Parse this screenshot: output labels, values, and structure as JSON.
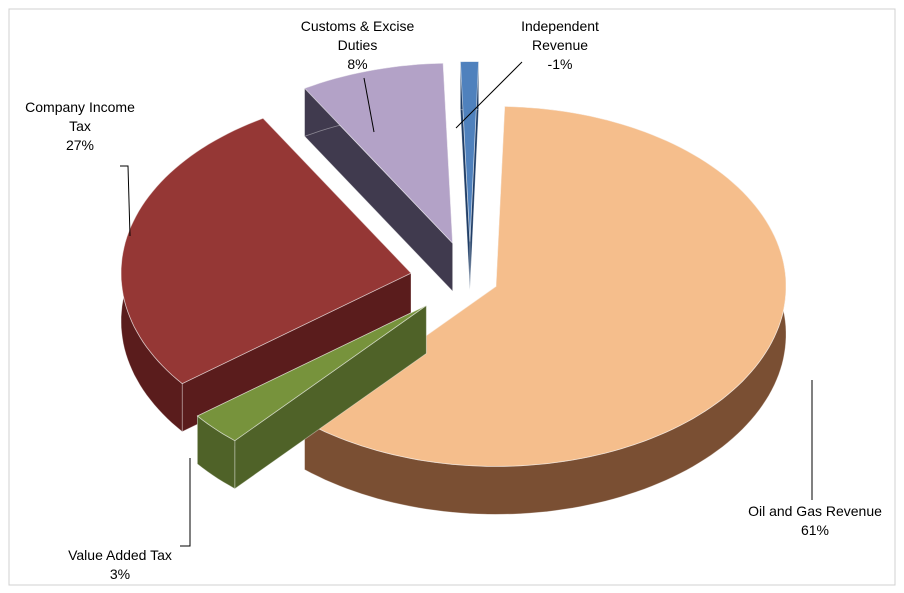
{
  "chart_data": {
    "type": "pie",
    "categories": [
      "Oil and Gas Revenue",
      "Value Added Tax",
      "Company Income Tax",
      "Customs & Excise Duties",
      "Independent Revenue"
    ],
    "values": [
      61,
      3,
      27,
      8,
      -1
    ],
    "value_labels": [
      "61%",
      "3%",
      "27%",
      "8%",
      "-1%"
    ],
    "colors": [
      "#F5BE8C",
      "#77933C",
      "#953735",
      "#B3A2C7",
      "#4F81BD"
    ],
    "side_colors": [
      "#7a4f33",
      "#4F6228",
      "#5a1c1c",
      "#403a4e",
      "#1f3d66"
    ]
  }
}
